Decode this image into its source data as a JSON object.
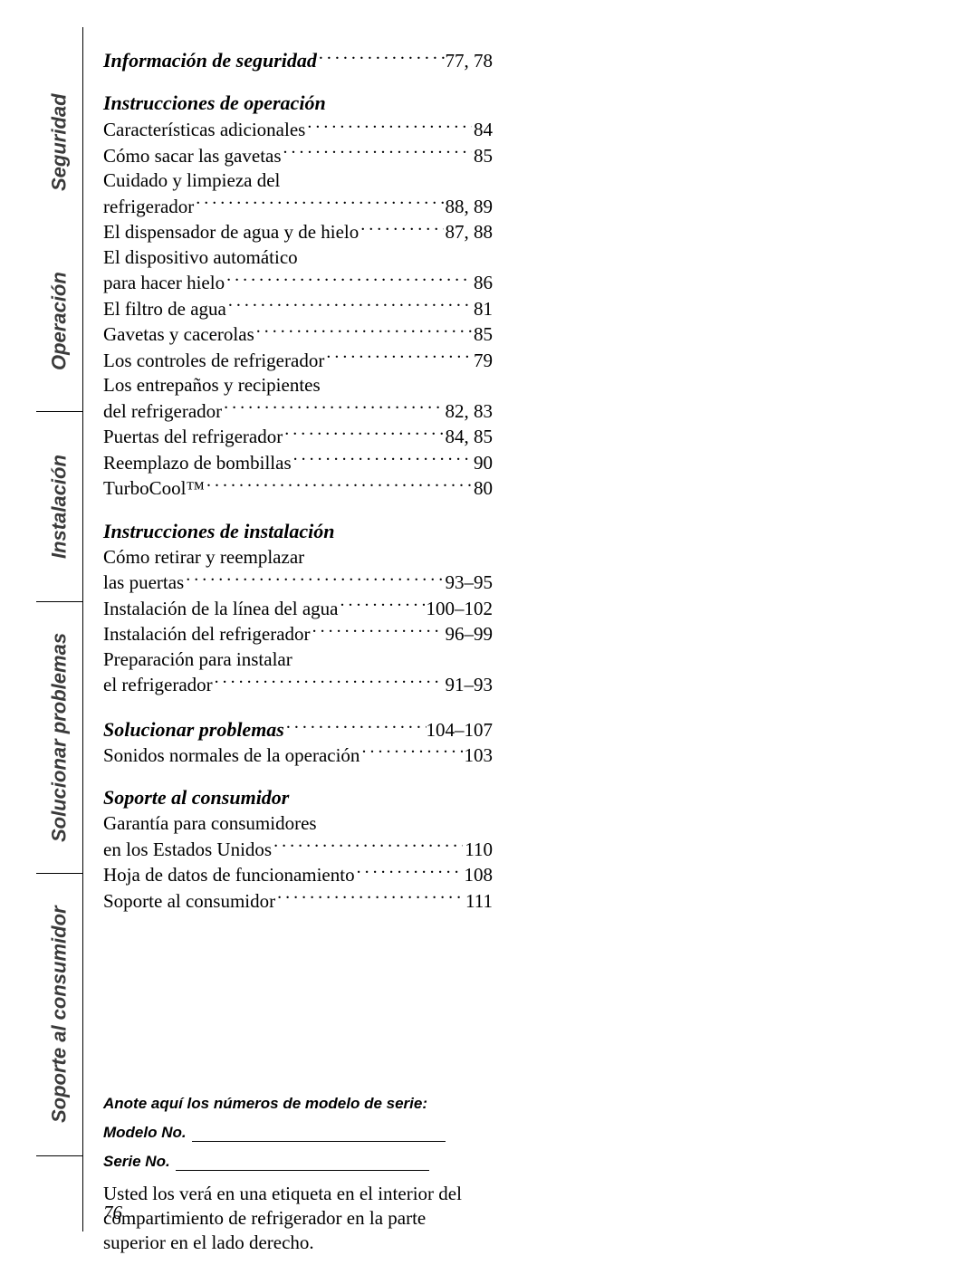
{
  "tabs": [
    {
      "label": "Seguridad",
      "flex": 195
    },
    {
      "label": "Operación",
      "flex": 200
    },
    {
      "label": "Instalación",
      "flex": 210
    },
    {
      "label": "Solucionar problemas",
      "flex": 300
    },
    {
      "label": "Soporte al consumidor",
      "flex": 312
    }
  ],
  "seguridad_head": {
    "label": "Información de seguridad",
    "page": "77, 78"
  },
  "operacion_head": "Instrucciones de operación",
  "operacion": [
    {
      "label": "Características adicionales",
      "page": "84"
    },
    {
      "label": "Cómo sacar las gavetas",
      "page": "85"
    },
    {
      "label": "Cuidado y limpieza del",
      "cont": true
    },
    {
      "label": "refrigerador",
      "page": "88, 89"
    },
    {
      "label": "El dispensador de agua y de hielo",
      "page": "87, 88"
    },
    {
      "label": "El dispositivo automático",
      "cont": true
    },
    {
      "label": "para hacer hielo",
      "page": "86"
    },
    {
      "label": "El filtro de agua",
      "page": "81"
    },
    {
      "label": "Gavetas y cacerolas",
      "page": "85"
    },
    {
      "label": "Los controles de refrigerador",
      "page": "79"
    },
    {
      "label": "Los entrepaños y recipientes",
      "cont": true
    },
    {
      "label": "del refrigerador",
      "page": "82, 83"
    },
    {
      "label": "Puertas del refrigerador",
      "page": "84, 85"
    },
    {
      "label": "Reemplazo de bombillas",
      "page": "90"
    },
    {
      "label": "TurboCool™",
      "page": "80"
    }
  ],
  "instalacion_head": "Instrucciones de instalación",
  "instalacion": [
    {
      "label": "Cómo retirar y reemplazar",
      "cont": true
    },
    {
      "label": "las puertas",
      "page": "93–95"
    },
    {
      "label": "Instalación de la línea del agua",
      "page": "100–102"
    },
    {
      "label": "Instalación del refrigerador",
      "page": "96–99"
    },
    {
      "label": "Preparación para instalar",
      "cont": true
    },
    {
      "label": "el refrigerador",
      "page": "91–93"
    }
  ],
  "solucionar_head": {
    "label": "Solucionar problemas",
    "page": "104–107"
  },
  "solucionar": [
    {
      "label": "Sonidos normales de la operación",
      "page": "103"
    }
  ],
  "soporte_head": "Soporte al consumidor",
  "soporte": [
    {
      "label": "Garantía para consumidores",
      "cont": true
    },
    {
      "label": "en los Estados Unidos",
      "page": "110"
    },
    {
      "label": "Hoja de datos de funcionamiento",
      "page": "108"
    },
    {
      "label": "Soporte al consumidor",
      "page": "111"
    }
  ],
  "form": {
    "heading": "Anote aquí los números de modelo de serie:",
    "model_label": "Modelo No.",
    "serial_label": "Serie No.",
    "note": "Usted los verá en una etiqueta en el interior del compartimiento de refrigerador en la parte superior en el lado derecho."
  },
  "pagenum": "76"
}
